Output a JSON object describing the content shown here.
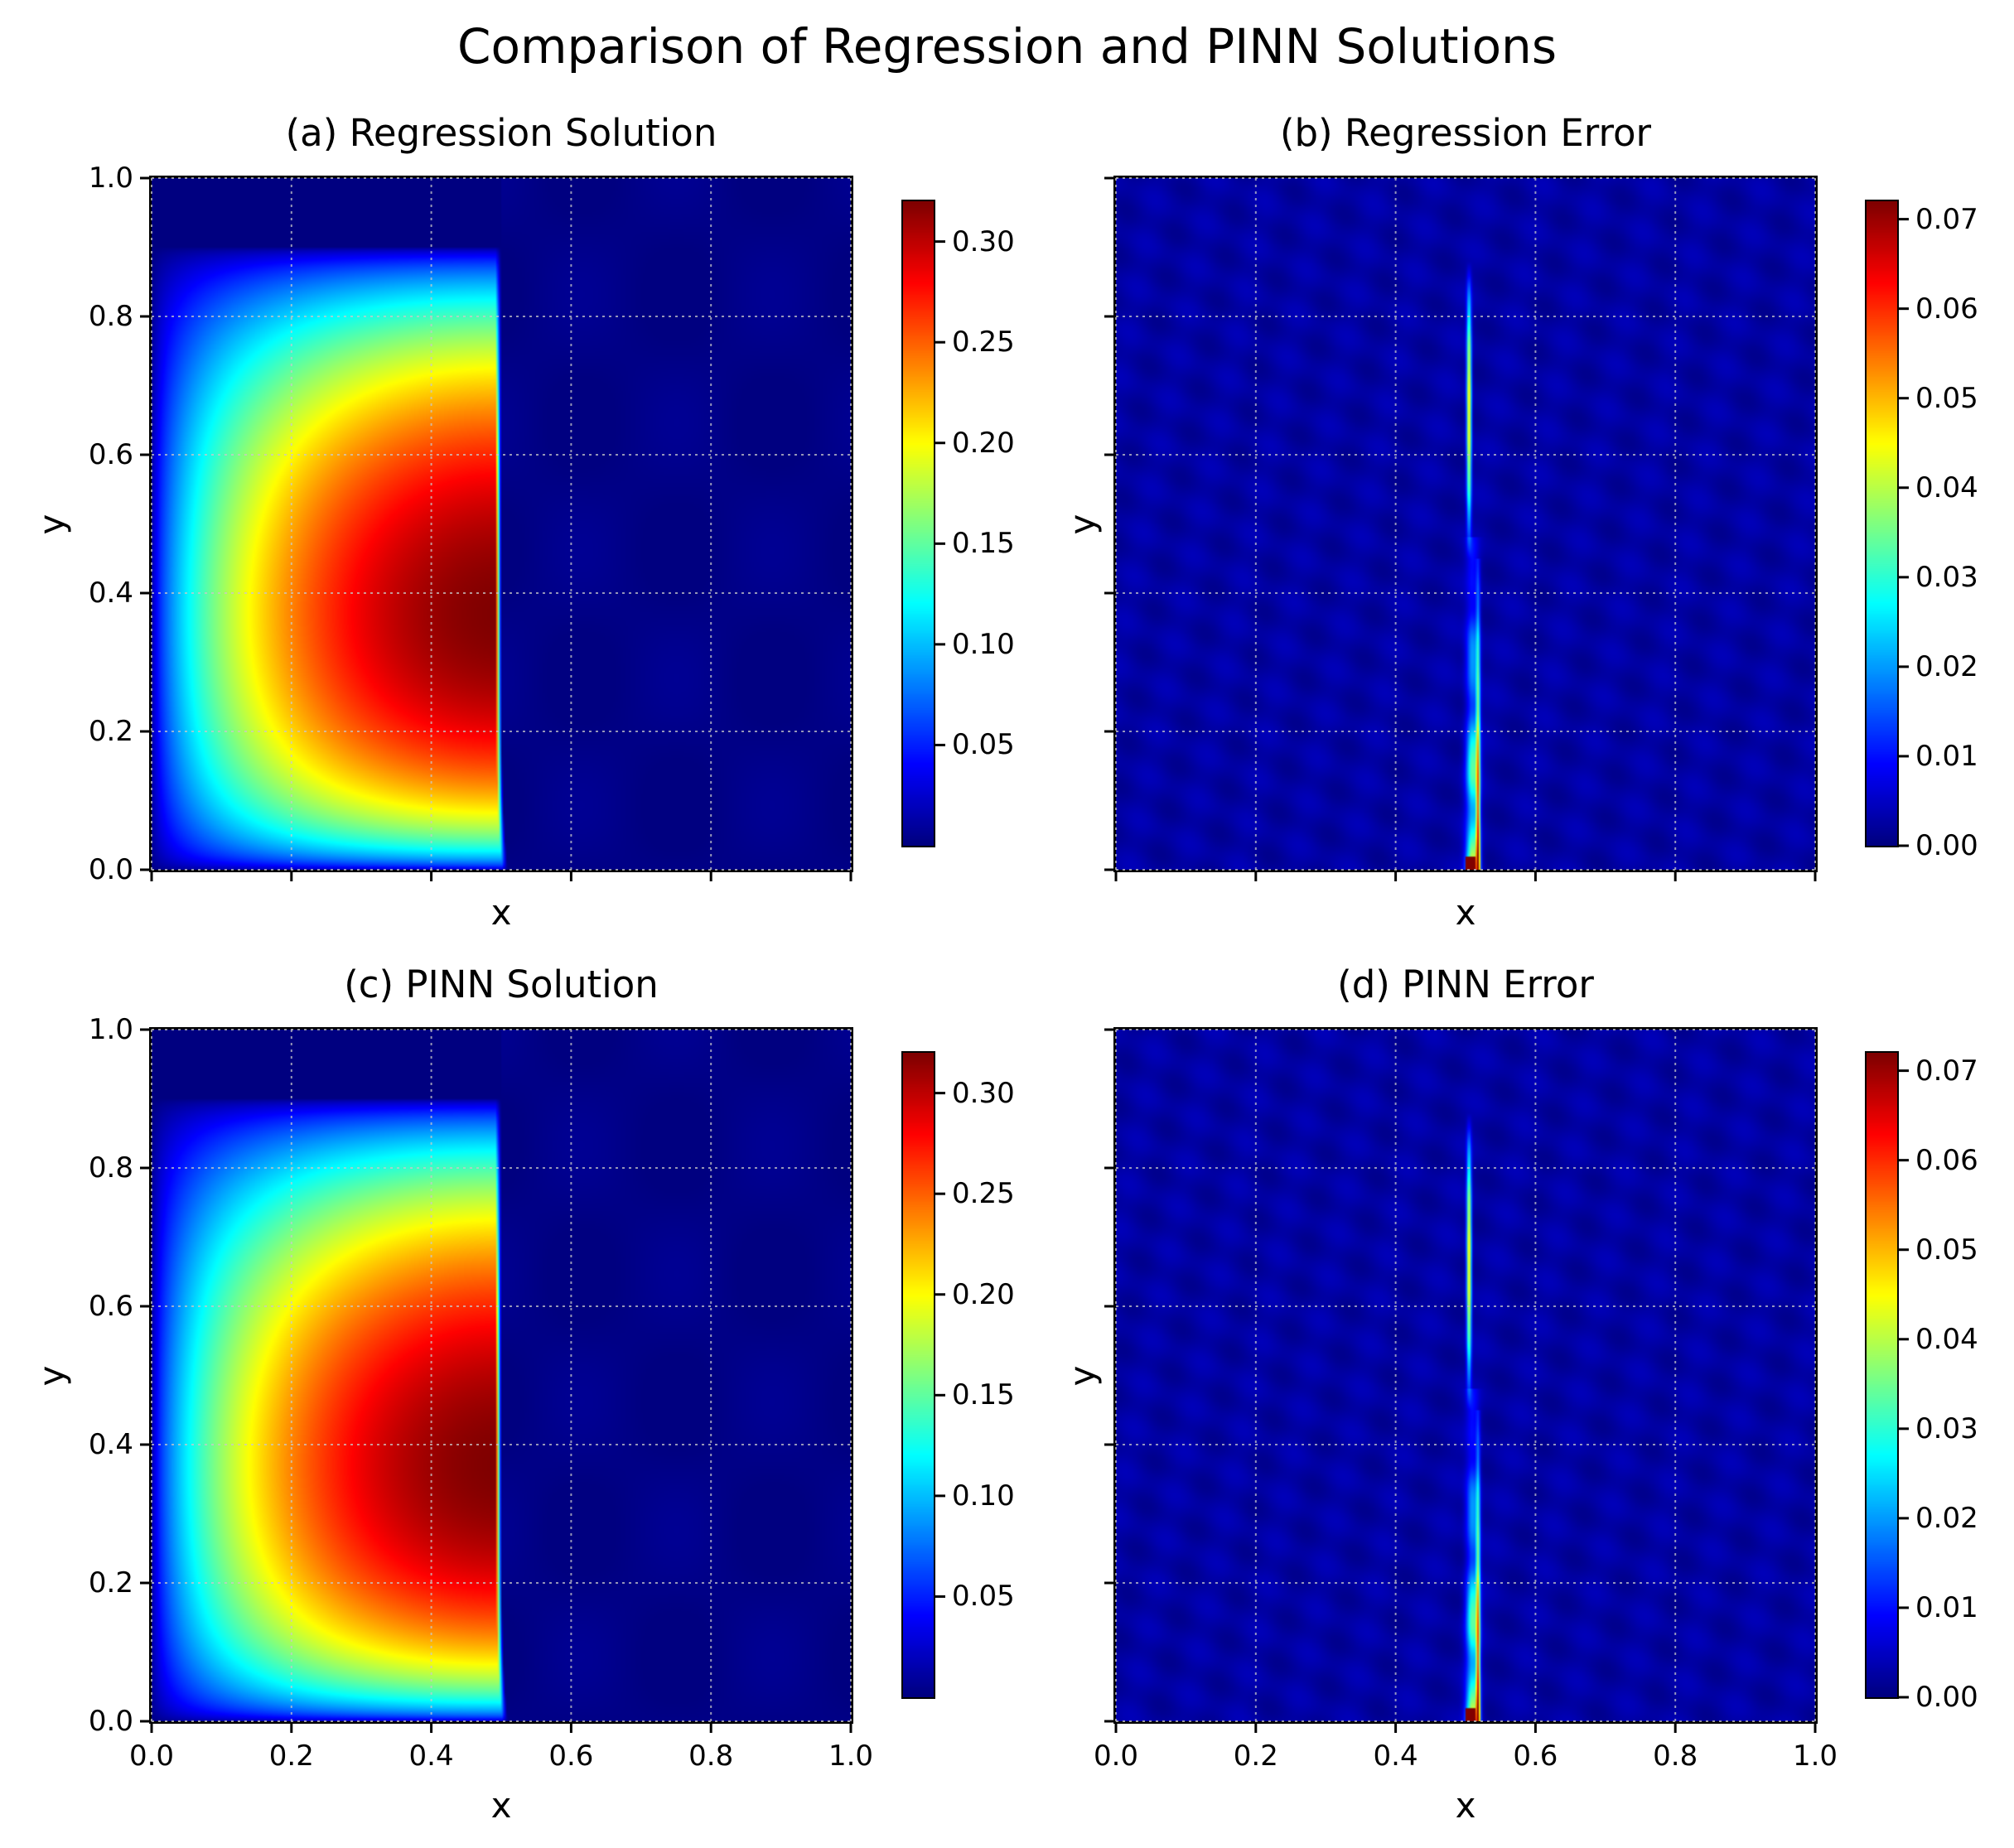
{
  "figure": {
    "suptitle": "Comparison of Regression and PINN Solutions"
  },
  "colormap": "jet",
  "chart_data": [
    {
      "type": "heatmap",
      "title": "(a) Regression Solution",
      "xlabel": "x",
      "ylabel": "y",
      "xlim": [
        0.0,
        1.0
      ],
      "ylim": [
        0.0,
        1.0
      ],
      "xticks": [
        "0.0",
        "0.2",
        "0.4",
        "0.6",
        "0.8",
        "1.0"
      ],
      "yticks": [
        "0.0",
        "0.2",
        "0.4",
        "0.6",
        "0.8",
        "1.0"
      ],
      "show_xtick_labels": false,
      "show_ytick_labels": true,
      "grid": true,
      "field": "solution",
      "peak": {
        "x": 0.45,
        "y": 0.3,
        "value": 0.32
      },
      "discontinuity_x": 0.5,
      "colorbar": {
        "min": 0.0,
        "max": 0.32,
        "ticks": [
          "0.05",
          "0.10",
          "0.15",
          "0.20",
          "0.25",
          "0.30"
        ]
      }
    },
    {
      "type": "heatmap",
      "title": "(b) Regression Error",
      "xlabel": "x",
      "ylabel": "y",
      "xlim": [
        0.0,
        1.0
      ],
      "ylim": [
        0.0,
        1.0
      ],
      "xticks": [
        "0.0",
        "0.2",
        "0.4",
        "0.6",
        "0.8",
        "1.0"
      ],
      "yticks": [
        "0.0",
        "0.2",
        "0.4",
        "0.6",
        "0.8",
        "1.0"
      ],
      "show_xtick_labels": false,
      "show_ytick_labels": false,
      "grid": true,
      "field": "error",
      "error_band_x": [
        0.5,
        0.52
      ],
      "max_error": 0.072,
      "colorbar": {
        "min": 0.0,
        "max": 0.072,
        "ticks": [
          "0.00",
          "0.01",
          "0.02",
          "0.03",
          "0.04",
          "0.05",
          "0.06",
          "0.07"
        ]
      }
    },
    {
      "type": "heatmap",
      "title": "(c) PINN Solution",
      "xlabel": "x",
      "ylabel": "y",
      "xlim": [
        0.0,
        1.0
      ],
      "ylim": [
        0.0,
        1.0
      ],
      "xticks": [
        "0.0",
        "0.2",
        "0.4",
        "0.6",
        "0.8",
        "1.0"
      ],
      "yticks": [
        "0.0",
        "0.2",
        "0.4",
        "0.6",
        "0.8",
        "1.0"
      ],
      "show_xtick_labels": true,
      "show_ytick_labels": true,
      "grid": true,
      "field": "solution",
      "peak": {
        "x": 0.45,
        "y": 0.3,
        "value": 0.32
      },
      "discontinuity_x": 0.5,
      "colorbar": {
        "min": 0.0,
        "max": 0.32,
        "ticks": [
          "0.05",
          "0.10",
          "0.15",
          "0.20",
          "0.25",
          "0.30"
        ]
      }
    },
    {
      "type": "heatmap",
      "title": "(d) PINN Error",
      "xlabel": "x",
      "ylabel": "y",
      "xlim": [
        0.0,
        1.0
      ],
      "ylim": [
        0.0,
        1.0
      ],
      "xticks": [
        "0.0",
        "0.2",
        "0.4",
        "0.6",
        "0.8",
        "1.0"
      ],
      "yticks": [
        "0.0",
        "0.2",
        "0.4",
        "0.6",
        "0.8",
        "1.0"
      ],
      "show_xtick_labels": true,
      "show_ytick_labels": false,
      "grid": true,
      "field": "error",
      "error_band_x": [
        0.5,
        0.52
      ],
      "max_error": 0.072,
      "colorbar": {
        "min": 0.0,
        "max": 0.072,
        "ticks": [
          "0.00",
          "0.01",
          "0.02",
          "0.03",
          "0.04",
          "0.05",
          "0.06",
          "0.07"
        ]
      }
    }
  ]
}
